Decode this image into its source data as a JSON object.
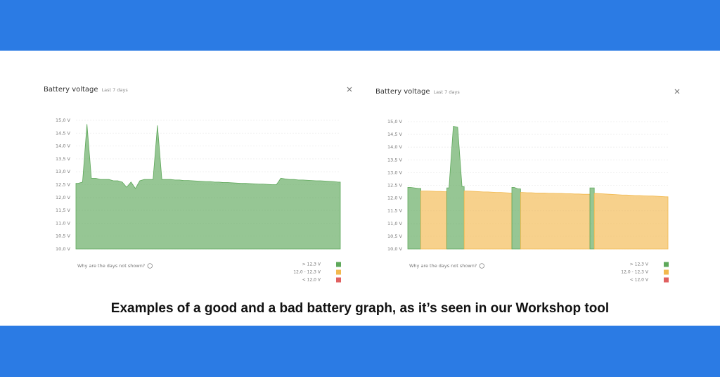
{
  "caption": "Examples of a good and a bad battery graph, as it’s seen in our Workshop tool",
  "chart_data": [
    {
      "type": "area",
      "title": "Battery voltage",
      "subtitle": "Last 7 days",
      "ylim": [
        10,
        15
      ],
      "yticks": [
        {
          "value": 10,
          "label": "10,0 V"
        },
        {
          "value": 10.5,
          "label": "10,5 V"
        },
        {
          "value": 11,
          "label": "11,0 V"
        },
        {
          "value": 11.5,
          "label": "11,5 V"
        },
        {
          "value": 12,
          "label": "12,0 V"
        },
        {
          "value": 12.5,
          "label": "12,5 V"
        },
        {
          "value": 13,
          "label": "13,0 V"
        },
        {
          "value": 13.5,
          "label": "13,5 V"
        },
        {
          "value": 14,
          "label": "14,0 V"
        },
        {
          "value": 14.5,
          "label": "14,5 V"
        },
        {
          "value": 15,
          "label": "15,0 V"
        }
      ],
      "grid": true,
      "values": [
        12.55,
        12.6,
        14.85,
        12.75,
        12.75,
        12.7,
        12.7,
        12.7,
        12.65,
        12.65,
        12.6,
        12.4,
        12.6,
        12.35,
        12.65,
        12.7,
        12.7,
        12.7,
        14.8,
        12.7,
        12.7,
        12.7,
        12.68,
        12.68,
        12.66,
        12.66,
        12.65,
        12.64,
        12.63,
        12.62,
        12.62,
        12.6,
        12.6,
        12.58,
        12.58,
        12.57,
        12.56,
        12.55,
        12.55,
        12.54,
        12.53,
        12.52,
        12.52,
        12.51,
        12.5,
        12.5,
        12.75,
        12.72,
        12.7,
        12.7,
        12.68,
        12.68,
        12.67,
        12.66,
        12.65,
        12.65,
        12.64,
        12.63,
        12.62,
        12.6
      ],
      "note": "Why are the days not shown?",
      "legend": [
        {
          "label": "> 12,3 V",
          "color": "#5ea85a",
          "from": 12.3
        },
        {
          "label": "12,0 - 12,3 V",
          "color": "#f2b94e",
          "from": 12.0
        },
        {
          "label": "< 12,0 V",
          "color": "#e06060"
        }
      ]
    },
    {
      "type": "area",
      "title": "Battery voltage",
      "subtitle": "Last 7 days",
      "ylim": [
        10,
        15
      ],
      "yticks": [
        {
          "value": 10,
          "label": "10,0 V"
        },
        {
          "value": 10.5,
          "label": "10,5 V"
        },
        {
          "value": 11,
          "label": "11,0 V"
        },
        {
          "value": 11.5,
          "label": "11,5 V"
        },
        {
          "value": 12,
          "label": "12,0 V"
        },
        {
          "value": 12.5,
          "label": "12,5 V"
        },
        {
          "value": 13,
          "label": "13,0 V"
        },
        {
          "value": 13.5,
          "label": "13,5 V"
        },
        {
          "value": 14,
          "label": "14,0 V"
        },
        {
          "value": 14.5,
          "label": "14,5 V"
        },
        {
          "value": 15,
          "label": "15,0 V"
        }
      ],
      "grid": true,
      "values": [
        12.42,
        12.4,
        12.38,
        12.28,
        12.28,
        12.27,
        12.26,
        12.26,
        12.25,
        12.4,
        14.82,
        14.78,
        12.45,
        12.28,
        12.27,
        12.26,
        12.25,
        12.24,
        12.24,
        12.23,
        12.22,
        12.22,
        12.21,
        12.2,
        12.42,
        12.36,
        12.22,
        12.21,
        12.21,
        12.2,
        12.2,
        12.2,
        12.19,
        12.19,
        12.18,
        12.18,
        12.17,
        12.17,
        12.16,
        12.16,
        12.15,
        12.15,
        12.4,
        12.18,
        12.17,
        12.16,
        12.15,
        12.14,
        12.13,
        12.12,
        12.12,
        12.11,
        12.1,
        12.1,
        12.09,
        12.08,
        12.08,
        12.07,
        12.06,
        12.05
      ],
      "note": "Why are the days not shown?",
      "legend": [
        {
          "label": "> 12,3 V",
          "color": "#5ea85a",
          "from": 12.3
        },
        {
          "label": "12,0 - 12,3 V",
          "color": "#f2b94e",
          "from": 12.0
        },
        {
          "label": "< 12,0 V",
          "color": "#e06060"
        }
      ]
    }
  ]
}
